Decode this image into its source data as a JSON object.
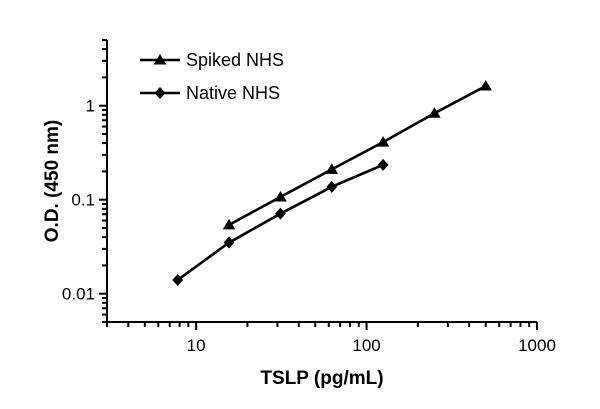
{
  "chart_data": {
    "type": "line",
    "xlabel": "TSLP (pg/mL)",
    "ylabel": "O.D. (450 nm)",
    "xscale": "log",
    "yscale": "log",
    "xlim": [
      3,
      1000
    ],
    "ylim": [
      0.005,
      5
    ],
    "xticks": [
      {
        "value": 10,
        "label": "10"
      },
      {
        "value": 100,
        "label": "100"
      },
      {
        "value": 1000,
        "label": "1000"
      }
    ],
    "yticks": [
      {
        "value": 0.01,
        "label": "0.01"
      },
      {
        "value": 0.1,
        "label": "0.1"
      },
      {
        "value": 1,
        "label": "1"
      }
    ],
    "legend_position": "top-left",
    "series": [
      {
        "name": "Spiked NHS",
        "marker": "triangle",
        "color": "#000000",
        "x": [
          15.6,
          31.25,
          62.5,
          125,
          250,
          500
        ],
        "y": [
          0.054,
          0.107,
          0.21,
          0.41,
          0.83,
          1.62
        ]
      },
      {
        "name": "Native NHS",
        "marker": "diamond",
        "color": "#000000",
        "x": [
          7.8,
          15.6,
          31.25,
          62.5,
          125
        ],
        "y": [
          0.014,
          0.035,
          0.071,
          0.137,
          0.235
        ]
      }
    ]
  }
}
